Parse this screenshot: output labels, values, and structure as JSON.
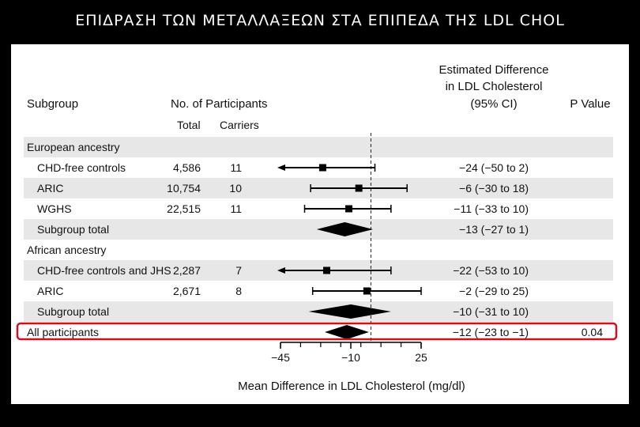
{
  "slide_title": "ΕΠΙΔΡΑΣΗ ΤΩΝ ΜΕΤΑΛΛΑΞΕΩΝ ΣΤΑ ΕΠΙΠΕΔΑ ΤΗΣ LDL CHOL",
  "highlight_color": "#d0101c",
  "row_band_color": "#e7e7e7",
  "chart_data": {
    "type": "forest",
    "headers": {
      "subgroup": "Subgroup",
      "participants": "No. of Participants",
      "total": "Total",
      "carriers": "Carriers",
      "estimate": [
        "Estimated Difference",
        "in LDL Cholesterol",
        "(95% CI)"
      ],
      "pvalue": "P Value"
    },
    "rows": [
      {
        "label": "European ancestry",
        "kind": "group"
      },
      {
        "label": "CHD-free controls",
        "kind": "study",
        "total": "4,586",
        "carriers": "11",
        "est": -24,
        "lo": -50,
        "hi": 2,
        "ci_text": "−24 (−50 to 2)",
        "arrow_left": true
      },
      {
        "label": "ARIC",
        "kind": "study",
        "total": "10,754",
        "carriers": "10",
        "est": -6,
        "lo": -30,
        "hi": 18,
        "ci_text": "−6 (−30 to 18)"
      },
      {
        "label": "WGHS",
        "kind": "study",
        "total": "22,515",
        "carriers": "11",
        "est": -11,
        "lo": -33,
        "hi": 10,
        "ci_text": "−11 (−33 to 10)"
      },
      {
        "label": "Subgroup total",
        "kind": "total",
        "est": -13,
        "lo": -27,
        "hi": 1,
        "ci_text": "−13 (−27 to 1)"
      },
      {
        "label": "African ancestry",
        "kind": "group"
      },
      {
        "label": "CHD-free controls and JHS",
        "kind": "study",
        "total": "2,287",
        "carriers": "7",
        "est": -22,
        "lo": -53,
        "hi": 10,
        "ci_text": "−22 (−53 to 10)",
        "arrow_left": true
      },
      {
        "label": "ARIC",
        "kind": "study",
        "total": "2,671",
        "carriers": "8",
        "est": -2,
        "lo": -29,
        "hi": 25,
        "ci_text": "−2 (−29 to 25)"
      },
      {
        "label": "Subgroup total",
        "kind": "total",
        "est": -10,
        "lo": -31,
        "hi": 10,
        "ci_text": "−10 (−31 to 10)"
      },
      {
        "label": "All participants",
        "kind": "overall",
        "est": -12,
        "lo": -23,
        "hi": -1,
        "ci_text": "−12 (−23 to −1)",
        "p": "0.04"
      }
    ],
    "xaxis": {
      "label": "Mean Difference in LDL Cholesterol (mg/dl)",
      "range": [
        -45,
        25
      ],
      "ticks": [
        -45,
        -10,
        25
      ],
      "tick_labels": [
        "−45",
        "−10",
        "25"
      ],
      "reference_line": 0
    }
  }
}
